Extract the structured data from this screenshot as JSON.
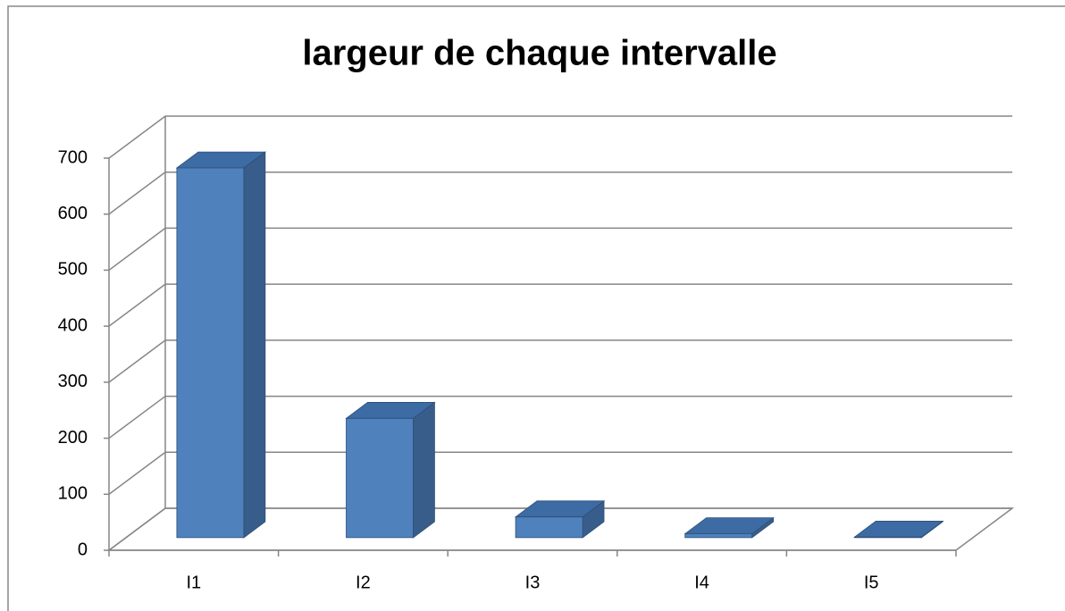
{
  "chart_data": {
    "type": "bar3d",
    "title": "largeur de chaque intervalle",
    "categories": [
      "I1",
      "I2",
      "I3",
      "I4",
      "I5"
    ],
    "values": [
      660,
      213,
      37,
      7,
      1
    ],
    "color": "#4f81bd",
    "ylim": [
      0,
      700
    ],
    "yticks": [
      0,
      100,
      200,
      300,
      400,
      500,
      600,
      700
    ],
    "grid": true
  }
}
